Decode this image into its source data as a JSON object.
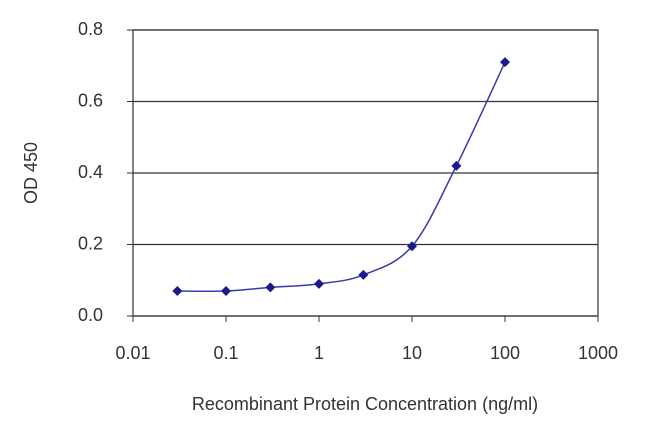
{
  "chart_data": {
    "type": "line",
    "xscale": "log",
    "grid": true,
    "x_label": "Recombinant Protein Concentration (ng/ml)",
    "y_label": "OD 450",
    "x": [
      0.03,
      0.1,
      0.3,
      1,
      3,
      10,
      30,
      100
    ],
    "series": [
      {
        "name": "OD 450",
        "color": "#1a1a8c",
        "values": [
          0.07,
          0.07,
          0.08,
          0.09,
          0.115,
          0.195,
          0.42,
          0.71
        ]
      }
    ],
    "xlim": [
      0.01,
      1000
    ],
    "xticks": [
      0.01,
      0.1,
      1,
      10,
      100,
      1000
    ],
    "ylim": [
      0,
      0.8
    ],
    "yticks": [
      {
        "value": 0,
        "label": "0.0"
      },
      0.2,
      0.4,
      0.6,
      0.8
    ]
  }
}
